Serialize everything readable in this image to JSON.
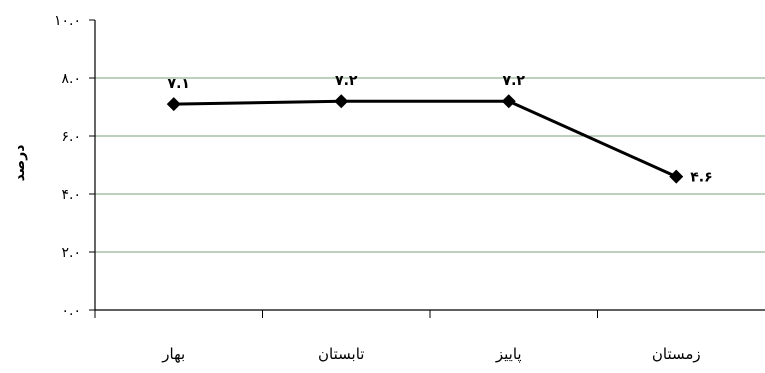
{
  "chart_data": {
    "type": "line",
    "categories": [
      "بهار",
      "تابستان",
      "پاییز",
      "زمستان"
    ],
    "series": [
      {
        "values": [
          7.1,
          7.2,
          7.2,
          4.6
        ],
        "data_labels": [
          "۷.۱",
          "۷.۲",
          "۷.۲",
          "۴.۶"
        ]
      }
    ],
    "ylim": [
      0,
      10
    ],
    "yticks": [
      0,
      2,
      4,
      6,
      8,
      10
    ],
    "ytick_labels": [
      "۰.۰",
      "۲.۰",
      "۴.۰",
      "۶.۰",
      "۸.۰",
      "۱۰.۰"
    ],
    "ylabel": "درصد",
    "xlabel": "",
    "title": "",
    "grid": "horizontal",
    "grid_color": "#7aa07a",
    "line_color": "#000000",
    "marker": "diamond",
    "legend": "none"
  }
}
